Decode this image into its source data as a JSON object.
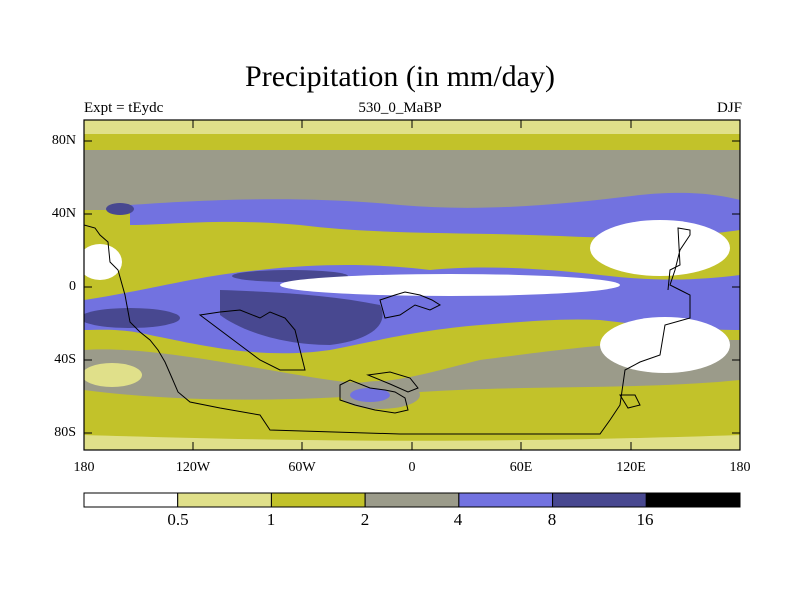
{
  "title": "Precipitation (in mm/day)",
  "subtitle_left": "Expt = tEydc",
  "subtitle_center": "530_0_MaBP",
  "subtitle_right": "DJF",
  "y_tick_labels": [
    "80N",
    "40N",
    "0",
    "40S",
    "80S"
  ],
  "x_tick_labels": [
    "180",
    "120W",
    "60W",
    "0",
    "60E",
    "120E",
    "180"
  ],
  "colorbar": {
    "boundaries": [
      "0.5",
      "1",
      "2",
      "4",
      "8",
      "16"
    ],
    "colors": [
      "#ffffff",
      "#e0e08a",
      "#c2c22a",
      "#9b9b8a",
      "#7272e0",
      "#484890",
      "#000000"
    ]
  },
  "map_extent": {
    "lon_min": -180,
    "lon_max": 180,
    "lat_min": -90,
    "lat_max": 90
  }
}
